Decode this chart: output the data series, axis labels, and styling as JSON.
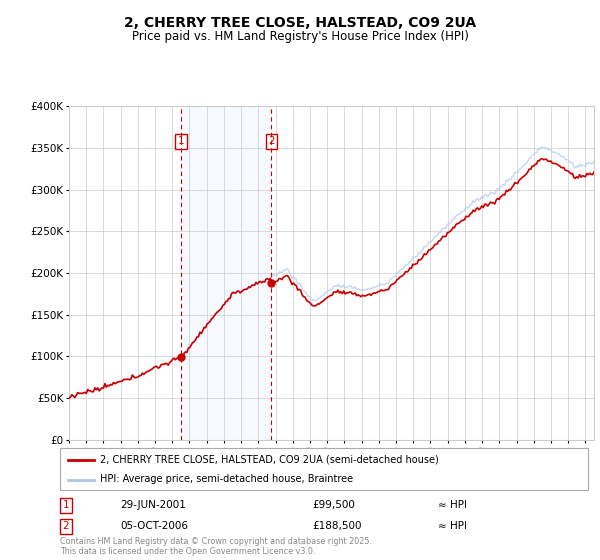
{
  "title": "2, CHERRY TREE CLOSE, HALSTEAD, CO9 2UA",
  "subtitle": "Price paid vs. HM Land Registry's House Price Index (HPI)",
  "title_fontsize": 10,
  "subtitle_fontsize": 8.5,
  "ylim": [
    0,
    400000
  ],
  "yticks": [
    0,
    50000,
    100000,
    150000,
    200000,
    250000,
    300000,
    350000,
    400000
  ],
  "ytick_labels": [
    "£0",
    "£50K",
    "£100K",
    "£150K",
    "£200K",
    "£250K",
    "£300K",
    "£350K",
    "£400K"
  ],
  "hpi_color": "#aec6e8",
  "price_color": "#cc0000",
  "dashed_color": "#cc0000",
  "background_color": "#ffffff",
  "plot_bg_color": "#ffffff",
  "grid_color": "#cccccc",
  "shade_color": "#ddeeff",
  "purchase1_date": 2001.49,
  "purchase1_price": 99500,
  "purchase1_label": "1",
  "purchase1_display": "29-JUN-2001",
  "purchase1_price_display": "£99,500",
  "purchase2_date": 2006.76,
  "purchase2_price": 188500,
  "purchase2_label": "2",
  "purchase2_display": "05-OCT-2006",
  "purchase2_price_display": "£188,500",
  "legend_line1": "2, CHERRY TREE CLOSE, HALSTEAD, CO9 2UA (semi-detached house)",
  "legend_line2": "HPI: Average price, semi-detached house, Braintree",
  "footer": "Contains HM Land Registry data © Crown copyright and database right 2025.\nThis data is licensed under the Open Government Licence v3.0.",
  "xmin": 1995,
  "xmax": 2025.5
}
